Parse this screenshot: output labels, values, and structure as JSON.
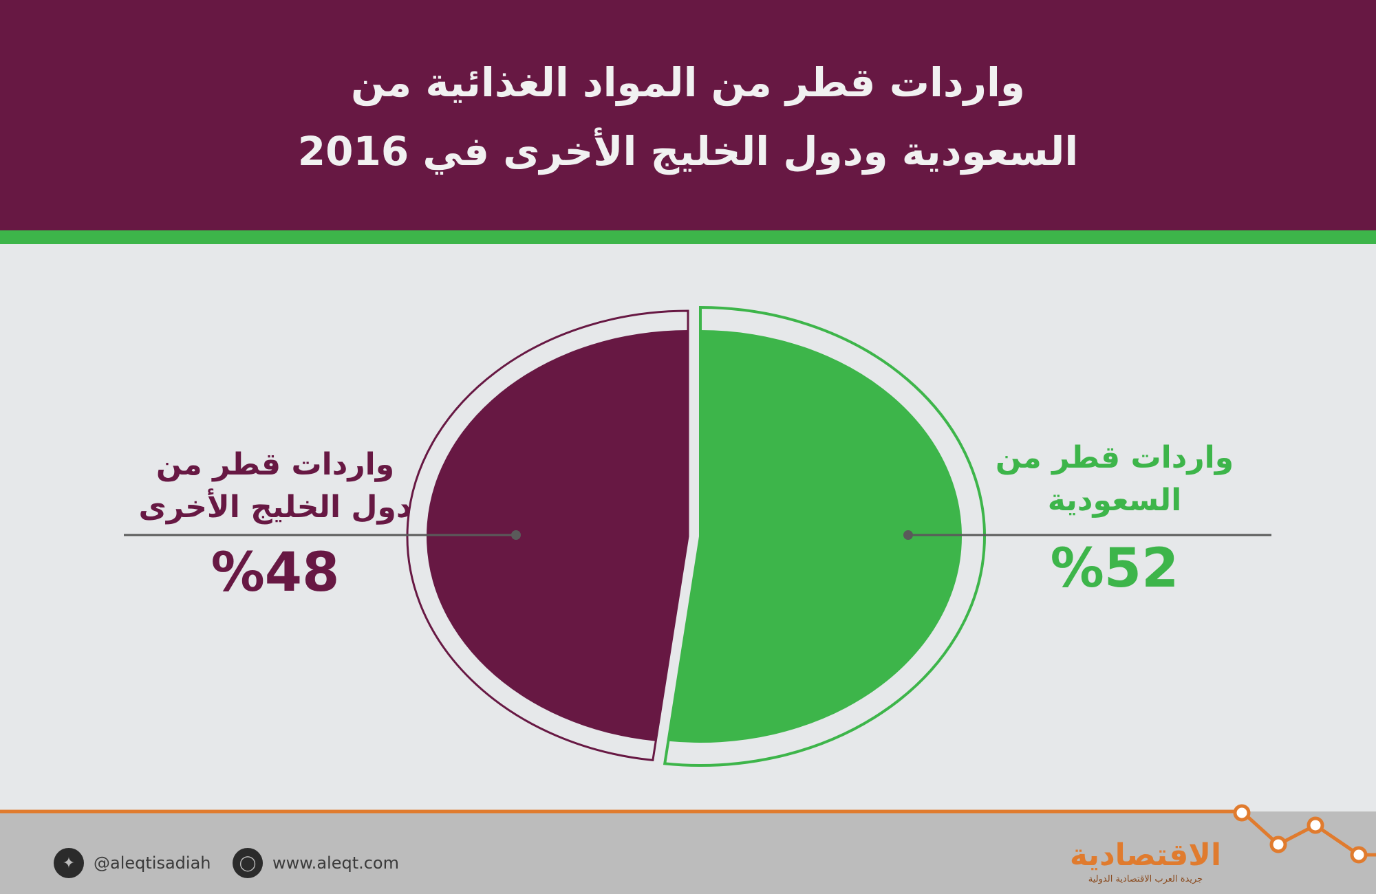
{
  "header": {
    "title_line1": "واردات قطر من المواد الغذائية من",
    "title_line2": "السعودية ودول الخليج الأخرى في 2016"
  },
  "colors": {
    "header_bg": "#671843",
    "accent_green": "#3db54a",
    "maroon": "#671843",
    "background": "#e6e8ea",
    "footer_bg": "#bcbcbc",
    "brand_orange": "#e07b2e"
  },
  "chart_data": {
    "type": "pie",
    "series": [
      {
        "name": "واردات قطر من السعودية",
        "value": 52,
        "label": "%52",
        "color": "#3db54a"
      },
      {
        "name": "واردات قطر من دول الخليج الأخرى",
        "value": 48,
        "label": "%48",
        "color": "#671843"
      }
    ]
  },
  "labels": {
    "saudi_line1": "واردات قطر من",
    "saudi_line2": "السعودية",
    "saudi_pct": "%52",
    "gulf_line1": "واردات قطر من",
    "gulf_line2": "دول الخليج الأخرى",
    "gulf_pct": "%48"
  },
  "footer": {
    "twitter_icon": "twitter-icon",
    "twitter_handle": "@aleqtisadiah",
    "web_icon": "globe-icon",
    "website": "www.aleqt.com",
    "brand_name": "الاقتصادية",
    "brand_tagline": "جريدة العرب الاقتصادية الدولية"
  }
}
